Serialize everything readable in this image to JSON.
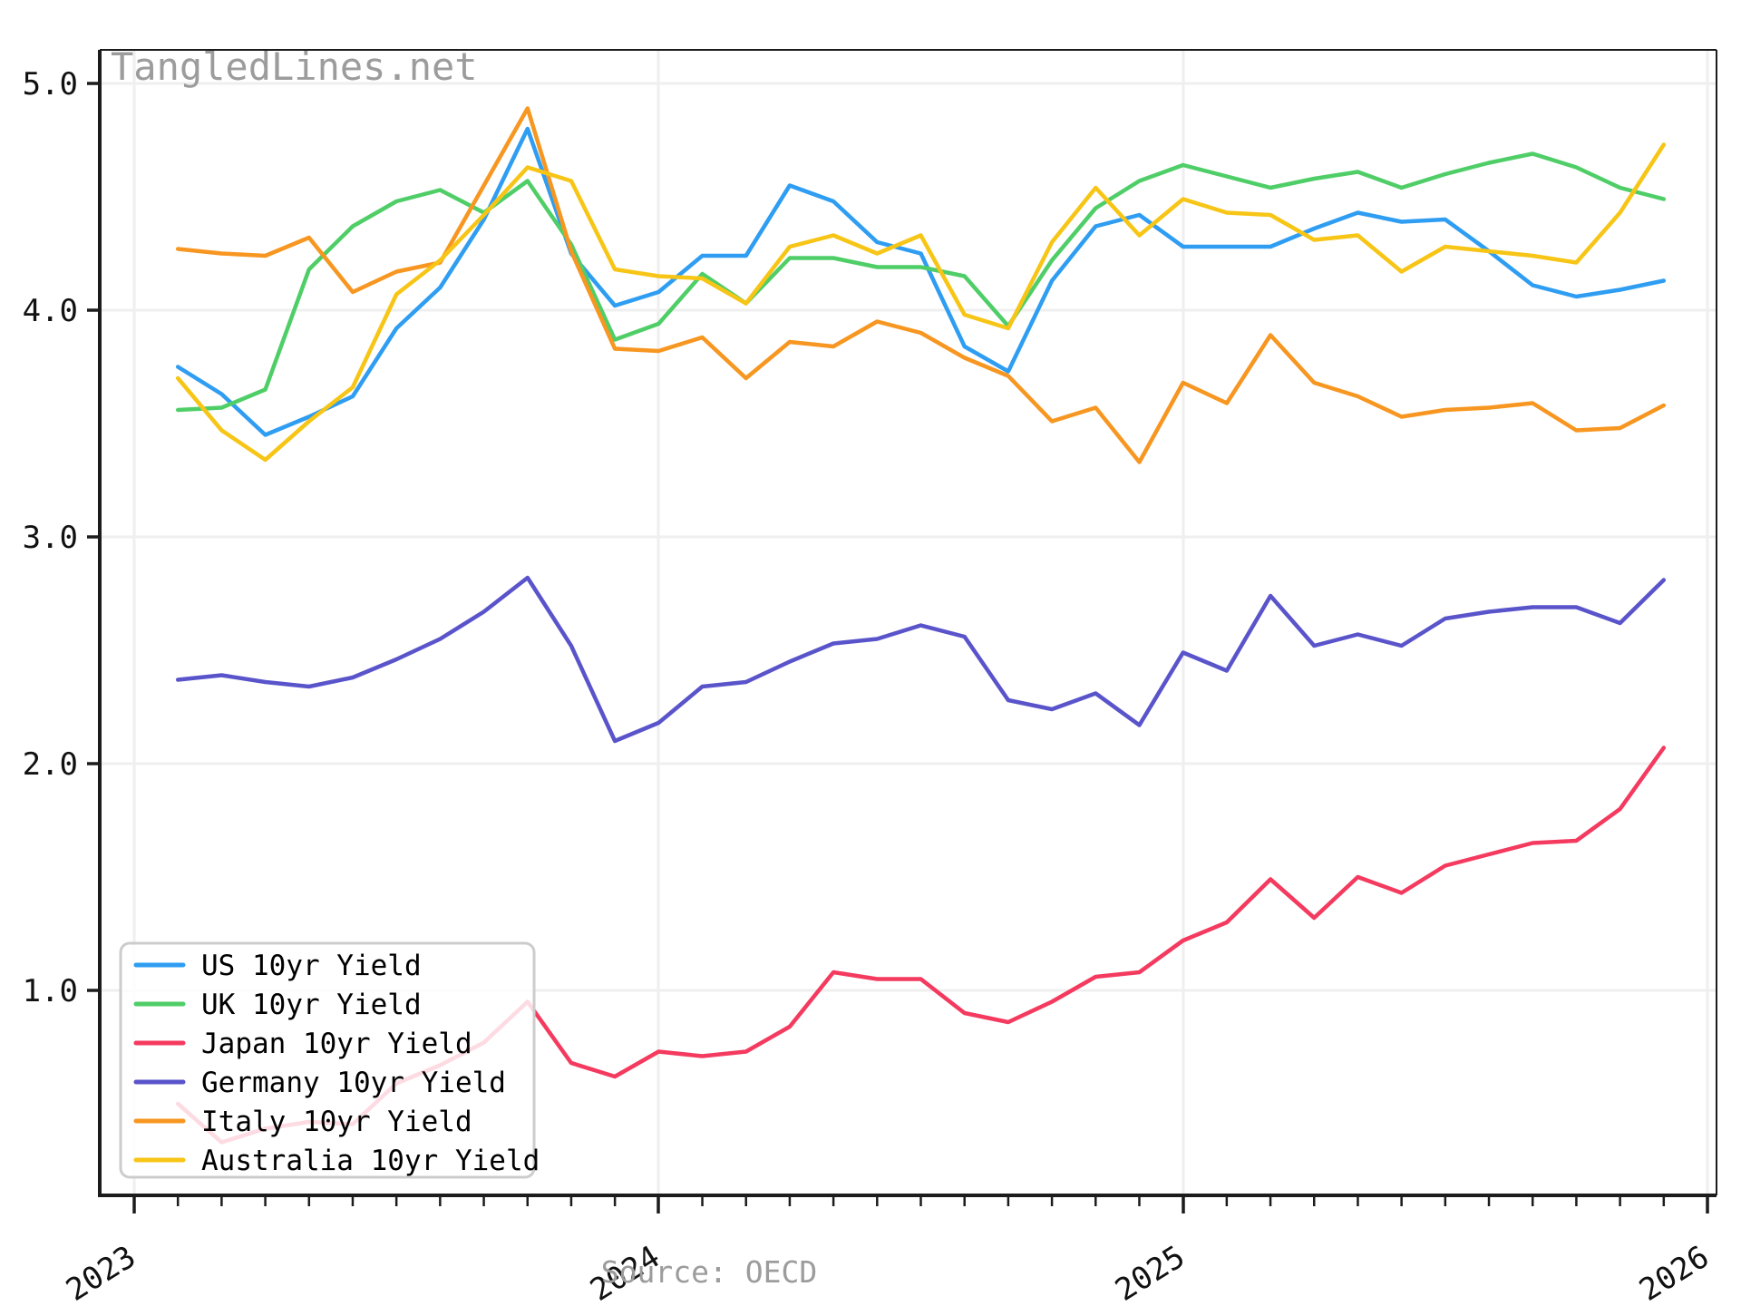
{
  "watermark": "TangledLines.net",
  "source_note": "Source: OECD",
  "colors": {
    "us": "#2E9DF2",
    "uk": "#4FCE68",
    "japan": "#F43A5F",
    "germany": "#5A54CB",
    "italy": "#F79620",
    "australia": "#F7C516",
    "grid": "#efefef",
    "spine": "#1c1c1c",
    "tick_label": "#111111",
    "muted": "#9c9c9c",
    "legend_border": "#cccccc"
  },
  "chart_data": {
    "type": "line",
    "title": "",
    "xlabel": "",
    "ylabel": "",
    "x_tick_labels": [
      "2023",
      "2024",
      "2025",
      "2026"
    ],
    "y_tick_labels": [
      "1.0",
      "2.0",
      "3.0",
      "4.0",
      "5.0"
    ],
    "yticks": [
      1.0,
      2.0,
      3.0,
      4.0,
      5.0
    ],
    "ylim": [
      0.1,
      5.12
    ],
    "grid": true,
    "legend_position": "lower left",
    "months": [
      "2023-01",
      "2023-02",
      "2023-03",
      "2023-04",
      "2023-05",
      "2023-06",
      "2023-07",
      "2023-08",
      "2023-09",
      "2023-10",
      "2023-11",
      "2023-12",
      "2024-01",
      "2024-02",
      "2024-03",
      "2024-04",
      "2024-05",
      "2024-06",
      "2024-07",
      "2024-08",
      "2024-09",
      "2024-10",
      "2024-11",
      "2024-12",
      "2025-01",
      "2025-02",
      "2025-03",
      "2025-04",
      "2025-05",
      "2025-06",
      "2025-07",
      "2025-08",
      "2025-09",
      "2025-10",
      "2025-11"
    ],
    "series": [
      {
        "id": "us",
        "name": "US 10yr Yield",
        "values": [
          3.75,
          3.63,
          3.45,
          3.53,
          3.62,
          3.92,
          4.1,
          4.4,
          4.8,
          4.25,
          4.02,
          4.08,
          4.24,
          4.24,
          4.55,
          4.48,
          4.3,
          4.25,
          3.84,
          3.73,
          4.13,
          4.37,
          4.42,
          4.28,
          4.28,
          4.28,
          4.36,
          4.43,
          4.39,
          4.4,
          4.26,
          4.11,
          4.06,
          4.09,
          4.13
        ]
      },
      {
        "id": "uk",
        "name": "UK 10yr Yield",
        "values": [
          3.56,
          3.57,
          3.65,
          4.18,
          4.37,
          4.48,
          4.53,
          4.43,
          4.57,
          4.29,
          3.87,
          3.94,
          4.16,
          4.03,
          4.23,
          4.23,
          4.19,
          4.19,
          4.15,
          3.93,
          4.22,
          4.45,
          4.57,
          4.64,
          4.59,
          4.54,
          4.58,
          4.61,
          4.54,
          4.6,
          4.65,
          4.69,
          4.63,
          4.54,
          4.49
        ]
      },
      {
        "id": "japan",
        "name": "Japan 10yr Yield",
        "values": [
          0.5,
          0.33,
          0.39,
          0.42,
          0.41,
          0.59,
          0.67,
          0.77,
          0.95,
          0.68,
          0.62,
          0.73,
          0.71,
          0.73,
          0.84,
          1.08,
          1.05,
          1.05,
          0.9,
          0.86,
          0.95,
          1.06,
          1.08,
          1.22,
          1.3,
          1.49,
          1.32,
          1.5,
          1.43,
          1.55,
          1.6,
          1.65,
          1.66,
          1.8,
          2.07
        ]
      },
      {
        "id": "germany",
        "name": "Germany 10yr Yield",
        "values": [
          2.37,
          2.39,
          2.36,
          2.34,
          2.38,
          2.46,
          2.55,
          2.67,
          2.82,
          2.52,
          2.1,
          2.18,
          2.34,
          2.36,
          2.45,
          2.53,
          2.55,
          2.61,
          2.56,
          2.28,
          2.24,
          2.31,
          2.17,
          2.49,
          2.41,
          2.74,
          2.52,
          2.57,
          2.52,
          2.64,
          2.67,
          2.69,
          2.69,
          2.62,
          2.81
        ]
      },
      {
        "id": "italy",
        "name": "Italy 10yr Yield",
        "values": [
          4.27,
          4.25,
          4.24,
          4.32,
          4.08,
          4.17,
          4.21,
          4.55,
          4.89,
          4.26,
          3.83,
          3.82,
          3.88,
          3.7,
          3.86,
          3.84,
          3.95,
          3.9,
          3.79,
          3.71,
          3.51,
          3.57,
          3.33,
          3.68,
          3.59,
          3.89,
          3.68,
          3.62,
          3.53,
          3.56,
          3.57,
          3.59,
          3.47,
          3.48,
          3.58
        ]
      },
      {
        "id": "australia",
        "name": "Australia 10yr Yield",
        "values": [
          3.7,
          3.47,
          3.34,
          3.51,
          3.66,
          4.07,
          4.22,
          4.42,
          4.63,
          4.57,
          4.18,
          4.15,
          4.14,
          4.03,
          4.28,
          4.33,
          4.25,
          4.33,
          3.98,
          3.92,
          4.3,
          4.54,
          4.33,
          4.49,
          4.43,
          4.42,
          4.31,
          4.33,
          4.17,
          4.28,
          4.26,
          4.24,
          4.21,
          4.43,
          4.73
        ]
      }
    ]
  }
}
